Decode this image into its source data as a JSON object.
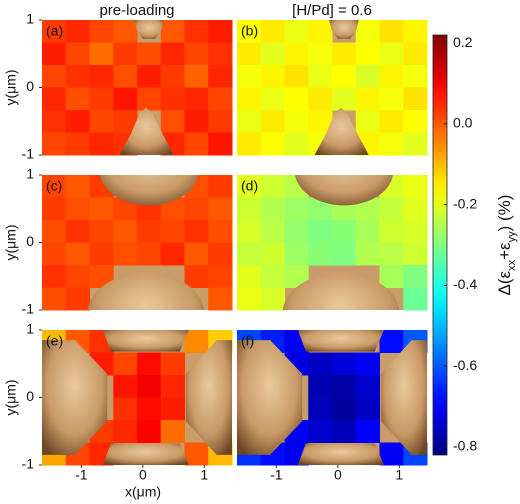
{
  "chart_data": {
    "type": "heatmap",
    "column_titles": [
      "pre-loading",
      "[H/Pd] = 0.6"
    ],
    "x_label": "x(μm)",
    "y_label": "y(μm)",
    "xlim": [
      -1.64,
      1.45
    ],
    "ylim": [
      -1,
      1
    ],
    "xticks": [
      -1,
      0,
      1
    ],
    "yticks": [
      -1,
      0,
      1
    ],
    "colormap": "jet",
    "colorbar": {
      "lim": [
        -0.82,
        0.22
      ],
      "ticks": [
        0.2,
        {
          "value": 0,
          "label": "0.0"
        },
        -0.2,
        -0.4,
        -0.6,
        -0.8
      ],
      "label_parts": [
        "Δ(ε",
        "xx",
        "+ε",
        "yy",
        ") (%)"
      ]
    },
    "panels": [
      {
        "label": "(a)",
        "values": [
          [
            0.03,
            0.05,
            0.02,
            0.0,
            null,
            0.0,
            0.04,
            0.06
          ],
          [
            0.06,
            0.02,
            -0.02,
            0.03,
            0.01,
            0.05,
            0.02,
            0.04
          ],
          [
            0.02,
            0.04,
            0.05,
            0.01,
            0.06,
            0.03,
            -0.01,
            0.05
          ],
          [
            0.05,
            0.01,
            0.03,
            0.07,
            0.02,
            0.04,
            0.05,
            0.02
          ],
          [
            0.04,
            0.06,
            0.02,
            0.03,
            null,
            0.01,
            0.06,
            0.03
          ],
          [
            0.02,
            0.03,
            0.05,
            0.04,
            null,
            0.05,
            0.02,
            0.07
          ]
        ]
      },
      {
        "label": "(b)",
        "values": [
          [
            -0.17,
            -0.15,
            -0.19,
            -0.16,
            null,
            -0.18,
            -0.14,
            -0.16
          ],
          [
            -0.15,
            -0.2,
            -0.16,
            -0.18,
            -0.15,
            -0.17,
            -0.19,
            -0.15
          ],
          [
            -0.18,
            -0.16,
            -0.14,
            -0.19,
            -0.17,
            -0.21,
            -0.16,
            -0.18
          ],
          [
            -0.16,
            -0.19,
            -0.17,
            -0.15,
            -0.2,
            -0.16,
            -0.18,
            -0.14
          ],
          [
            -0.19,
            -0.15,
            -0.18,
            -0.16,
            null,
            -0.19,
            -0.15,
            -0.17
          ],
          [
            -0.15,
            -0.17,
            -0.2,
            -0.18,
            null,
            -0.16,
            -0.18,
            -0.2
          ]
        ]
      },
      {
        "label": "(c)",
        "values": [
          [
            0.02,
            0.0,
            0.03,
            null,
            null,
            null,
            0.01,
            0.03
          ],
          [
            0.03,
            0.01,
            0.0,
            0.02,
            0.04,
            0.01,
            0.02,
            0.0
          ],
          [
            0.01,
            0.04,
            0.02,
            0.0,
            0.03,
            0.02,
            0.04,
            0.01
          ],
          [
            0.02,
            0.0,
            0.03,
            0.01,
            0.02,
            0.05,
            0.0,
            0.03
          ],
          [
            0.04,
            0.02,
            0.01,
            null,
            null,
            null,
            0.03,
            0.02
          ],
          [
            0.01,
            0.03,
            null,
            null,
            null,
            null,
            null,
            0.0
          ]
        ]
      },
      {
        "label": "(d)",
        "values": [
          [
            -0.2,
            -0.22,
            -0.24,
            null,
            null,
            null,
            -0.21,
            -0.19
          ],
          [
            -0.22,
            -0.25,
            -0.27,
            -0.28,
            -0.26,
            -0.25,
            -0.23,
            -0.2
          ],
          [
            -0.21,
            -0.24,
            -0.28,
            -0.3,
            -0.29,
            -0.26,
            -0.22,
            -0.21
          ],
          [
            -0.23,
            -0.22,
            -0.27,
            -0.29,
            -0.3,
            -0.25,
            -0.24,
            -0.22
          ],
          [
            -0.2,
            -0.23,
            -0.25,
            null,
            null,
            null,
            -0.26,
            -0.3
          ],
          [
            -0.19,
            -0.21,
            null,
            null,
            null,
            null,
            null,
            -0.32
          ]
        ]
      },
      {
        "label": "(e)",
        "values": [
          [
            -0.1,
            0.0,
            0.04,
            null,
            null,
            null,
            -0.05,
            -0.12
          ],
          [
            null,
            null,
            0.06,
            0.02,
            0.08,
            0.03,
            null,
            null
          ],
          [
            null,
            null,
            null,
            0.07,
            0.1,
            0.05,
            null,
            null
          ],
          [
            null,
            null,
            null,
            0.04,
            0.08,
            0.06,
            null,
            null
          ],
          [
            null,
            null,
            0.03,
            0.05,
            0.09,
            -0.02,
            null,
            null
          ],
          [
            -0.08,
            0.02,
            0.05,
            null,
            null,
            null,
            0.0,
            -0.1
          ]
        ]
      },
      {
        "label": "(f)",
        "values": [
          [
            -0.62,
            -0.66,
            -0.7,
            null,
            null,
            null,
            -0.68,
            -0.6
          ],
          [
            null,
            null,
            -0.72,
            -0.75,
            -0.73,
            -0.7,
            null,
            null
          ],
          [
            null,
            null,
            null,
            -0.77,
            -0.78,
            -0.74,
            null,
            null
          ],
          [
            null,
            null,
            null,
            -0.76,
            -0.79,
            -0.75,
            null,
            null
          ],
          [
            null,
            null,
            -0.7,
            -0.74,
            -0.76,
            -0.69,
            null,
            null
          ],
          [
            -0.64,
            -0.68,
            -0.71,
            null,
            null,
            null,
            -0.7,
            -0.62
          ]
        ]
      }
    ]
  }
}
